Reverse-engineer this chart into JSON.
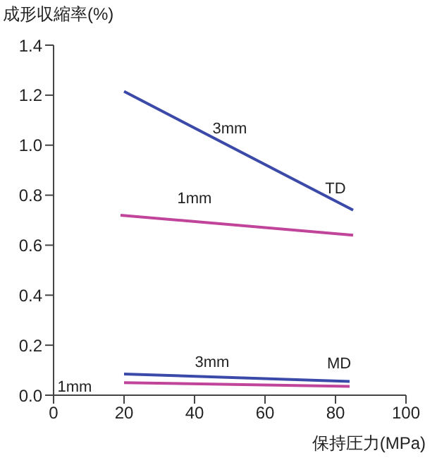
{
  "chart_data": {
    "type": "line",
    "ylabel": "成形収縮率(%)",
    "xlabel": "保持圧力(MPa)",
    "xlim": [
      0,
      100
    ],
    "xticks": [
      0,
      20,
      40,
      60,
      80,
      100
    ],
    "ylim": [
      0,
      1.4
    ],
    "yticks": [
      {
        "value": 0,
        "label": "0.0"
      },
      {
        "value": 0.2,
        "label": "0.2"
      },
      {
        "value": 0.4,
        "label": "0.4"
      },
      {
        "value": 0.6,
        "label": "0.6"
      },
      {
        "value": 0.8,
        "label": "0.8"
      },
      {
        "value": 1,
        "label": "1.0"
      },
      {
        "value": 1.2,
        "label": "1.2"
      },
      {
        "value": 1.4,
        "label": "1.4"
      }
    ],
    "grid": false,
    "legend": false,
    "marker": "none",
    "line_style": "solid",
    "series": [
      {
        "name": "3mm",
        "color": "#3b4aa8",
        "x": [
          20,
          85
        ],
        "values": [
          1.215,
          0.74
        ]
      },
      {
        "name": "1mm",
        "color": "#c0449a",
        "x": [
          19,
          85
        ],
        "values": [
          0.72,
          0.64
        ]
      },
      {
        "name": "3mm",
        "color": "#3b4aa8",
        "x": [
          20,
          84
        ],
        "values": [
          0.085,
          0.055
        ]
      },
      {
        "name": "1mm",
        "color": "#c0449a",
        "x": [
          20,
          84
        ],
        "values": [
          0.05,
          0.035
        ]
      }
    ],
    "annotations": [
      "TD",
      "MD"
    ]
  }
}
